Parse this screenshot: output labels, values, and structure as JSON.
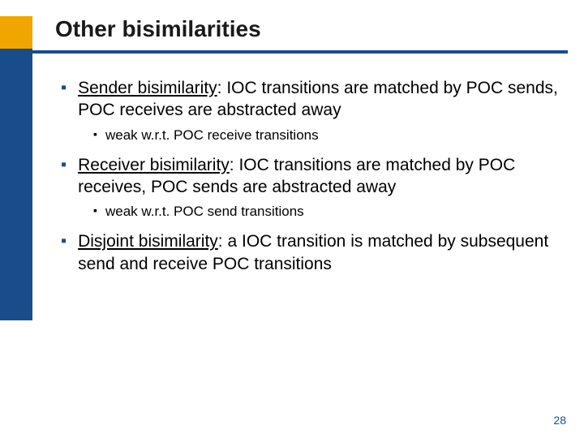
{
  "title": "Other bisimilarities",
  "colors": {
    "accent_gold": "#f0a500",
    "accent_blue": "#1a4c8b",
    "text": "#000000",
    "background": "#ffffff"
  },
  "items": {
    "b1_term": "Sender bisimilarity",
    "b1_rest": ": IOC transitions are matched by POC sends, POC receives are abstracted away",
    "b1_sub": "weak w.r.t. POC receive transitions",
    "b2_term": "Receiver bisimilarity",
    "b2_rest": ": IOC transitions are matched by POC receives, POC sends are abstracted away",
    "b2_sub": "weak w.r.t. POC send transitions",
    "b3_term": "Disjoint bisimilarity",
    "b3_rest": ": a IOC transition is matched by subsequent send and receive POC transitions"
  },
  "page_number": "28"
}
